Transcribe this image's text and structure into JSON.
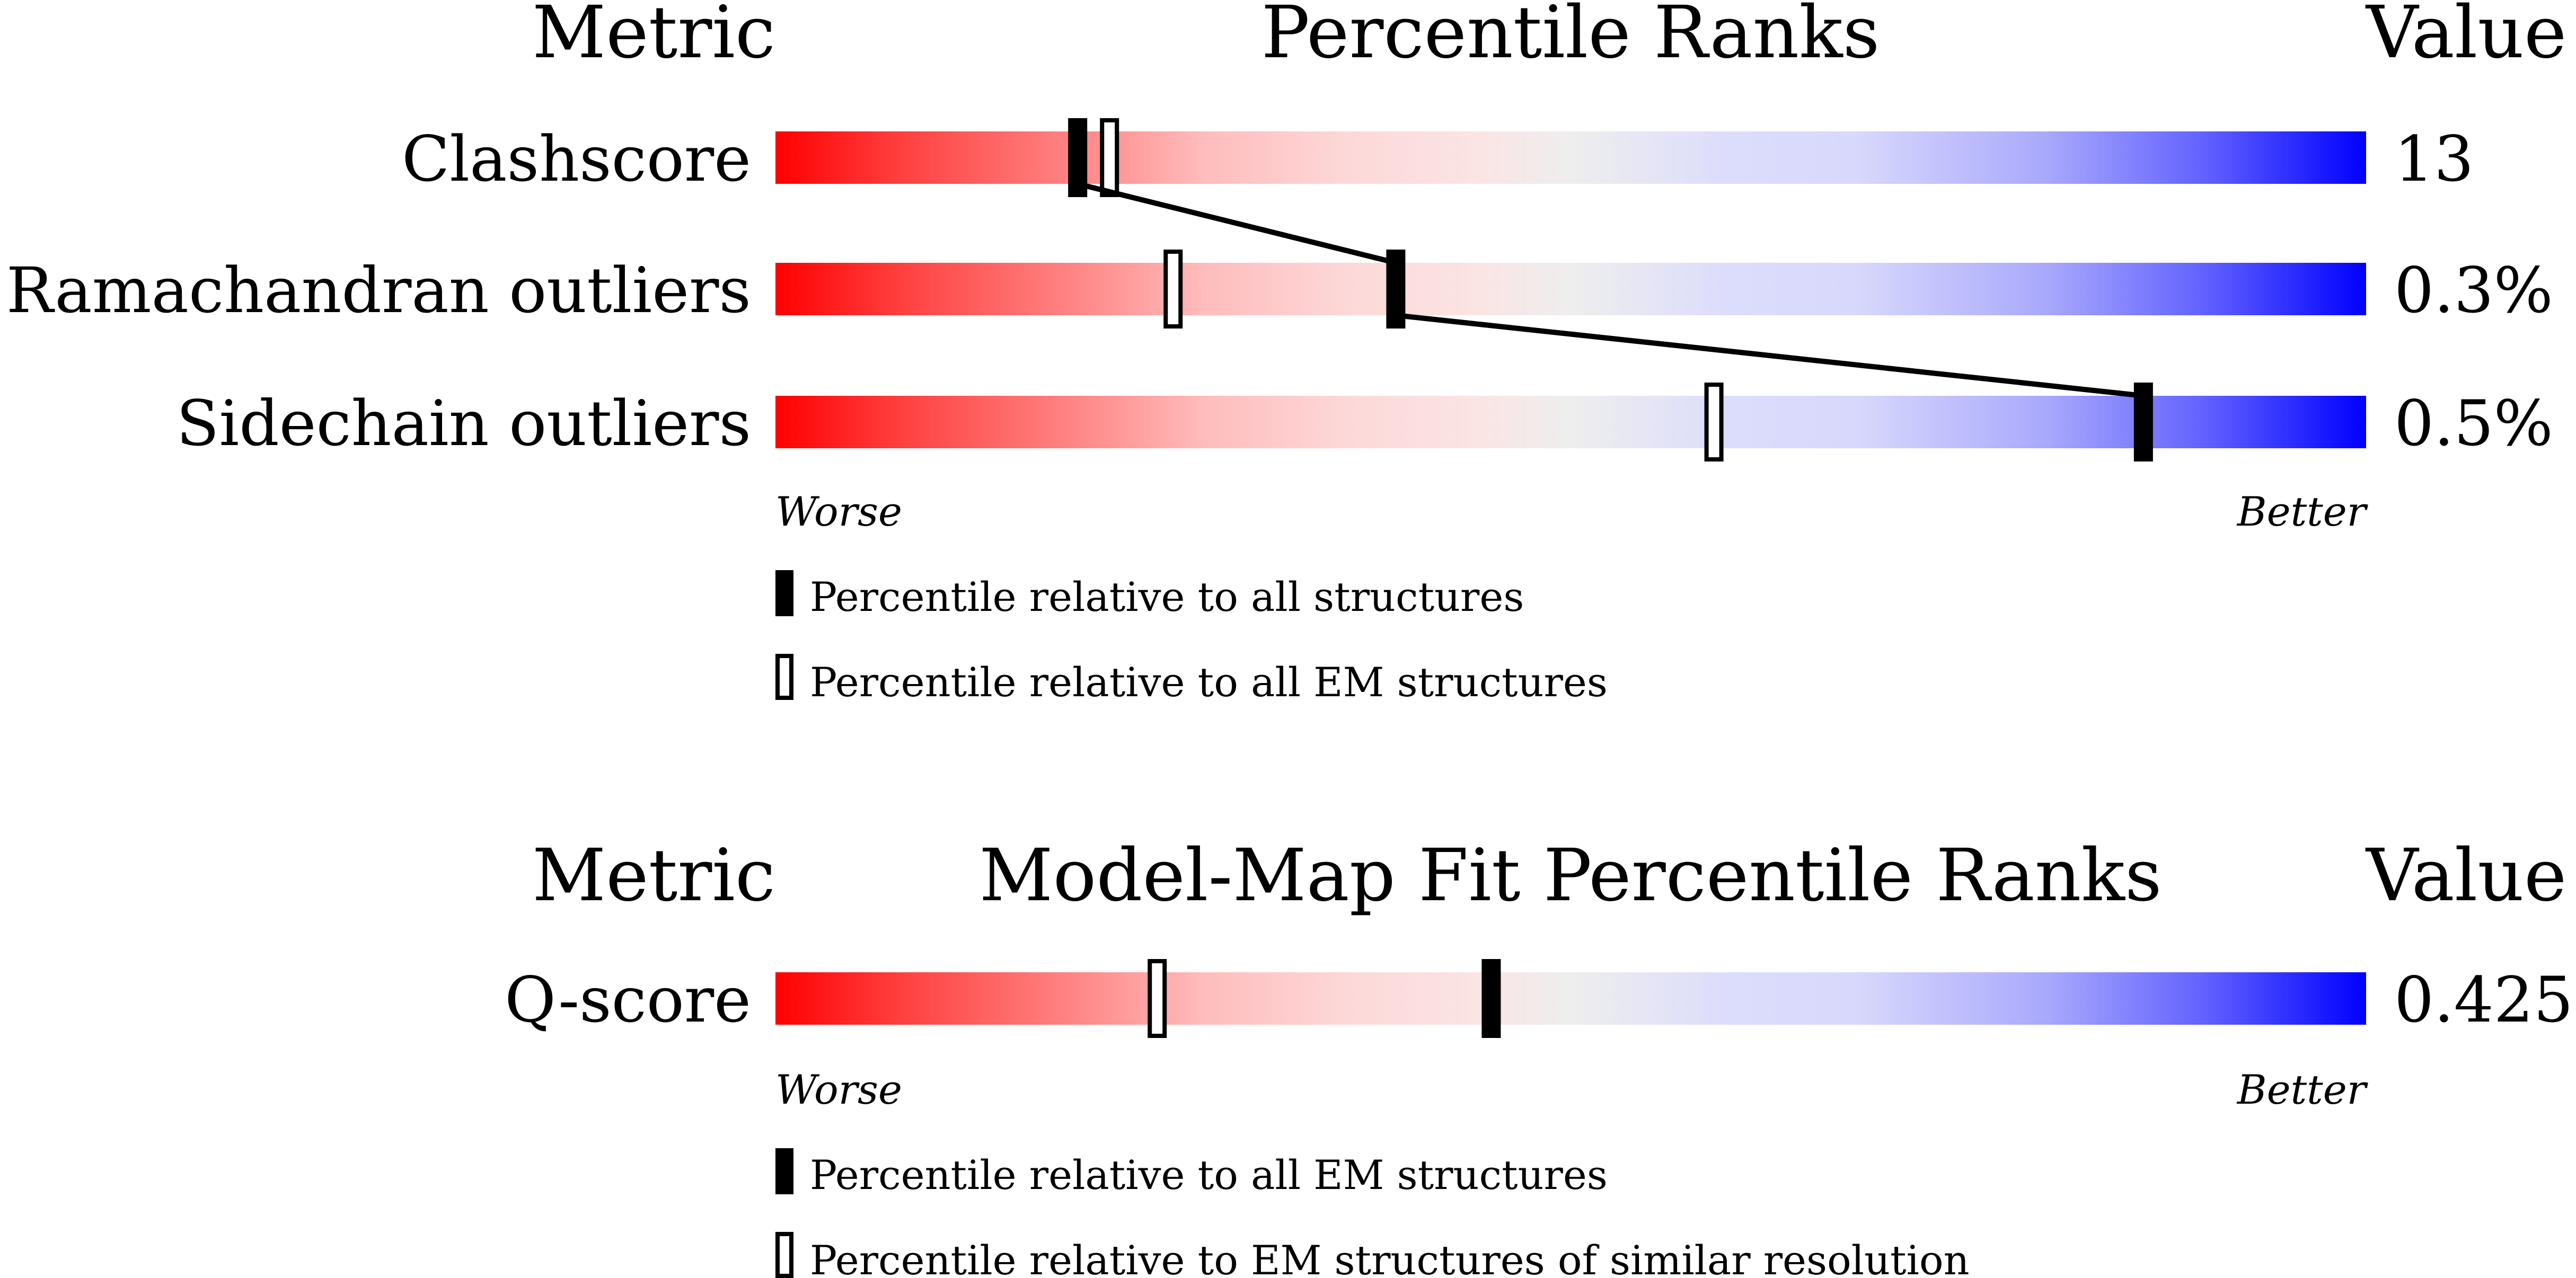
{
  "chart_data": [
    {
      "type": "percentile-bars",
      "header": {
        "metric": "Metric",
        "title": "Percentile Ranks",
        "value": "Value"
      },
      "rows": [
        {
          "label": "Clashscore",
          "value": "13",
          "percentile_all": 19,
          "percentile_em": 21
        },
        {
          "label": "Ramachandran outliers",
          "value": "0.3%",
          "percentile_all": 39,
          "percentile_em": 25
        },
        {
          "label": "Sidechain outliers",
          "value": "0.5%",
          "percentile_all": 86,
          "percentile_em": 59
        }
      ],
      "axis": {
        "left": "Worse",
        "right": "Better",
        "range": [
          0,
          100
        ]
      },
      "legend": [
        "Percentile relative to all structures",
        "Percentile relative to all EM structures"
      ],
      "connect_filled_markers": true
    },
    {
      "type": "percentile-bars",
      "header": {
        "metric": "Metric",
        "title": "Model-Map Fit Percentile Ranks",
        "value": "Value"
      },
      "rows": [
        {
          "label": "Q-score",
          "value": "0.425",
          "percentile_all": 45,
          "percentile_em": 24
        }
      ],
      "axis": {
        "left": "Worse",
        "right": "Better",
        "range": [
          0,
          100
        ]
      },
      "legend": [
        "Percentile relative to all EM structures",
        "Percentile relative to EM structures of similar resolution"
      ],
      "connect_filled_markers": false
    }
  ],
  "colors": {
    "worse": "#ff0000",
    "neutral": "#eeeeee",
    "better": "#0000ff",
    "marker": "#000000"
  }
}
